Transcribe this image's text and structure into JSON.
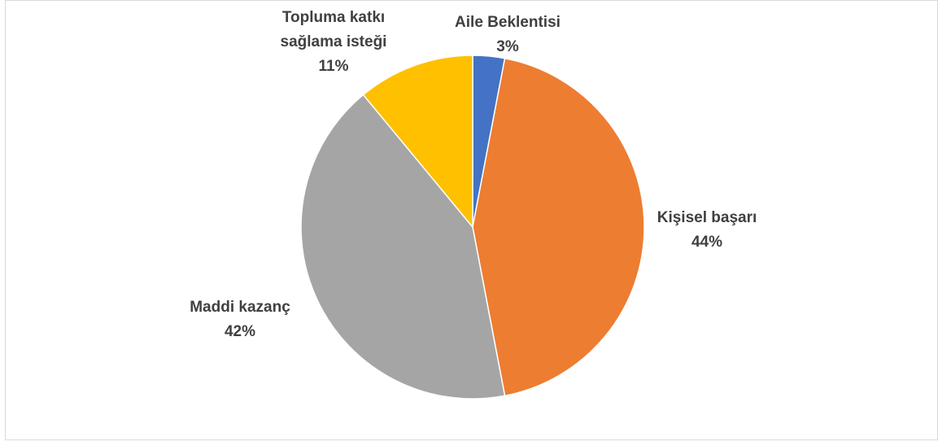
{
  "chart_data": {
    "type": "pie",
    "categories": [
      "Aile Beklentisi",
      "Kişisel başarı",
      "Maddi kazanç",
      "Topluma katkı sağlama isteği"
    ],
    "values": [
      3,
      44,
      42,
      11
    ],
    "value_labels": [
      "3%",
      "44%",
      "42%",
      "11%"
    ],
    "colors": [
      "#4472c4",
      "#ed7d31",
      "#a5a5a5",
      "#ffc000"
    ]
  }
}
